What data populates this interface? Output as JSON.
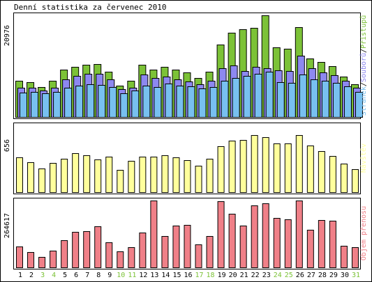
{
  "chart_data": {
    "type": "bar",
    "title": "Denní statistika za červenec 2010",
    "categories": [
      "1",
      "2",
      "3",
      "4",
      "5",
      "6",
      "7",
      "8",
      "9",
      "10",
      "11",
      "12",
      "13",
      "14",
      "15",
      "16",
      "17",
      "18",
      "19",
      "20",
      "21",
      "22",
      "23",
      "24",
      "25",
      "26",
      "27",
      "28",
      "29",
      "30",
      "31"
    ],
    "weekend_days": [
      "3",
      "4",
      "10",
      "11",
      "17",
      "18",
      "24",
      "25",
      "31"
    ],
    "panels": [
      {
        "id": "hits",
        "axis_max_label": "20976",
        "ylim": [
          0,
          20976
        ],
        "legend": {
          "parts": [
            "Stránek",
            "Souborů",
            "Přístupů"
          ],
          "separator": "/"
        },
        "series": [
          {
            "name": "Přístupů",
            "color": "#7cc237",
            "values": [
              7500,
              7200,
              6200,
              7400,
              9800,
              10400,
              10800,
              10900,
              9400,
              6500,
              7400,
              10800,
              9800,
              10400,
              9700,
              9200,
              8100,
              9400,
              14900,
              17400,
              18100,
              18400,
              20976,
              14300,
              14100,
              18500,
              12000,
              11300,
              10500,
              8300,
              6800
            ]
          },
          {
            "name": "Souborů",
            "color": "#8d88f0",
            "values": [
              6100,
              6000,
              5400,
              6000,
              7700,
              8500,
              8900,
              8900,
              7700,
              5700,
              6100,
              8700,
              8100,
              8400,
              7700,
              7300,
              6700,
              7500,
              10100,
              10700,
              9500,
              10300,
              10000,
              9600,
              9500,
              12600,
              10000,
              9200,
              8600,
              7500,
              6000
            ]
          },
          {
            "name": "Stránek",
            "color": "#78c0f0",
            "values": [
              5000,
              5200,
              4900,
              5200,
              6100,
              6500,
              6700,
              6600,
              6200,
              4900,
              5500,
              6400,
              6200,
              6900,
              6400,
              6300,
              5900,
              6200,
              7400,
              8100,
              8500,
              8900,
              9400,
              7200,
              7100,
              8800,
              7700,
              7400,
              7100,
              6300,
              5200
            ]
          }
        ]
      },
      {
        "id": "visits",
        "axis_max_label": "656",
        "ylim": [
          0,
          656
        ],
        "legend": {
          "parts": [
            "Návštěv"
          ]
        },
        "series": [
          {
            "name": "Návštěv",
            "color": "#ffff9c",
            "values": [
              340,
              292,
              230,
              285,
              330,
              385,
              362,
              320,
              350,
              220,
              307,
              350,
              350,
              363,
              345,
              315,
              263,
              330,
              448,
              504,
              510,
              563,
              543,
              475,
              480,
              560,
              458,
              405,
              357,
              280,
              225
            ]
          }
        ]
      },
      {
        "id": "bytes",
        "axis_max_label": "264617",
        "ylim": [
          0,
          264617
        ],
        "legend": {
          "parts": [
            "Objem přenosu"
          ]
        },
        "series": [
          {
            "name": "Objem přenosu",
            "color": "#f08088",
            "values": [
              83000,
              62000,
              40000,
              65000,
              107000,
              141000,
              144000,
              163000,
              99000,
              64000,
              80000,
              139000,
              264617,
              123000,
              165000,
              168000,
              91000,
              124000,
              262000,
              211000,
              165000,
              244000,
              254000,
              196000,
              191000,
              264617,
              150000,
              188000,
              185000,
              85000,
              80000
            ]
          }
        ]
      }
    ]
  }
}
